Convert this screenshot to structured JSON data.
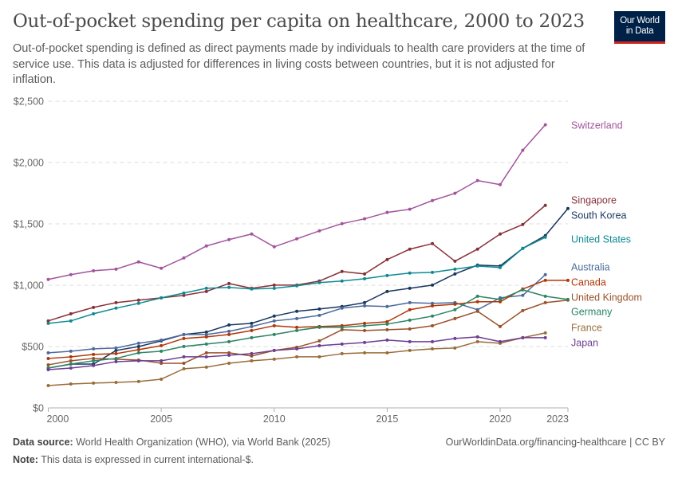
{
  "header": {
    "title": "Out-of-pocket spending per capita on healthcare, 2000 to 2023",
    "subtitle": "Out-of-pocket spending is defined as direct payments made by individuals to health care providers at the time of service use. This data is adjusted for differences in living costs between countries, but it is not adjusted for inflation.",
    "logo_line1": "Our World",
    "logo_line2": "in Data"
  },
  "footer": {
    "source_label": "Data source:",
    "source_text": " World Health Organization (WHO), via World Bank (2025)",
    "note_label": "Note:",
    "note_text": " This data is expressed in current international-$.",
    "url": "OurWorldinData.org/financing-healthcare | CC BY"
  },
  "chart_data": {
    "type": "line",
    "title": "Out-of-pocket spending per capita on healthcare, 2000 to 2023",
    "xlabel": "",
    "ylabel": "",
    "xlim": [
      2000,
      2023
    ],
    "ylim": [
      0,
      2500
    ],
    "y_ticks": [
      0,
      500,
      1000,
      1500,
      2000,
      2500
    ],
    "y_tick_labels": [
      "$0",
      "$500",
      "$1,000",
      "$1,500",
      "$2,000",
      "$2,500"
    ],
    "x_ticks": [
      2000,
      2005,
      2010,
      2015,
      2020,
      2023
    ],
    "x_tick_labels": [
      "2000",
      "2005",
      "2010",
      "2015",
      "2020",
      "2023"
    ],
    "grid": "horizontal-dashed",
    "legend": "right (inline end labels)",
    "series": [
      {
        "name": "Switzerland",
        "color": "#a2559c",
        "start": 2000,
        "values": [
          1047,
          1086,
          1118,
          1131,
          1190,
          1138,
          1222,
          1320,
          1372,
          1417,
          1313,
          1378,
          1443,
          1502,
          1541,
          1593,
          1619,
          1690,
          1749,
          1853,
          1820,
          2100,
          2308
        ]
      },
      {
        "name": "Singapore",
        "color": "#883039",
        "start": 2000,
        "values": [
          709,
          767,
          819,
          858,
          878,
          897,
          917,
          949,
          1014,
          975,
          1001,
          1001,
          1034,
          1112,
          1092,
          1209,
          1294,
          1339,
          1196,
          1294,
          1417,
          1495,
          1651
        ]
      },
      {
        "name": "South Korea",
        "color": "#18375f",
        "start": 2000,
        "values": [
          325,
          357,
          357,
          468,
          500,
          546,
          598,
          618,
          676,
          689,
          748,
          787,
          806,
          826,
          858,
          949,
          975,
          1001,
          1092,
          1164,
          1157,
          1300,
          1404,
          1625
        ]
      },
      {
        "name": "United States",
        "color": "#0f8a93",
        "start": 2000,
        "values": [
          689,
          709,
          767,
          813,
          852,
          897,
          936,
          975,
          982,
          969,
          975,
          995,
          1021,
          1034,
          1053,
          1079,
          1099,
          1105,
          1131,
          1157,
          1144,
          1300,
          1391
        ]
      },
      {
        "name": "Australia",
        "color": "#4c6a9c",
        "start": 2000,
        "values": [
          449,
          462,
          481,
          488,
          527,
          553,
          598,
          598,
          624,
          663,
          709,
          728,
          754,
          813,
          832,
          826,
          858,
          852,
          858,
          800,
          897,
          917,
          1086
        ]
      },
      {
        "name": "Canada",
        "color": "#b13507",
        "start": 2000,
        "values": [
          403,
          416,
          436,
          442,
          475,
          507,
          566,
          579,
          598,
          631,
          670,
          657,
          663,
          670,
          689,
          702,
          800,
          832,
          845,
          865,
          865,
          969,
          1040,
          1040
        ]
      },
      {
        "name": "United Kingdom",
        "color": "#9a5129",
        "start": 2000,
        "values": [
          351,
          384,
          403,
          397,
          390,
          364,
          364,
          449,
          449,
          423,
          468,
          494,
          546,
          637,
          631,
          637,
          644,
          670,
          728,
          787,
          663,
          793,
          858,
          878
        ]
      },
      {
        "name": "Germany",
        "color": "#2c8465",
        "start": 2000,
        "values": [
          325,
          357,
          384,
          403,
          449,
          462,
          501,
          520,
          540,
          572,
          598,
          631,
          657,
          657,
          670,
          683,
          715,
          748,
          800,
          910,
          884,
          962,
          910,
          884
        ]
      },
      {
        "name": "France",
        "color": "#996d39",
        "start": 2000,
        "values": [
          182,
          195,
          202,
          208,
          215,
          234,
          319,
          332,
          364,
          384,
          397,
          416,
          416,
          442,
          449,
          449,
          468,
          481,
          488,
          540,
          527,
          572,
          611
        ]
      },
      {
        "name": "Japan",
        "color": "#6d3e91",
        "start": 2000,
        "values": [
          312,
          325,
          345,
          377,
          384,
          384,
          416,
          416,
          429,
          442,
          468,
          481,
          507,
          520,
          533,
          553,
          540,
          540,
          566,
          579,
          540,
          572,
          572
        ]
      }
    ],
    "end_labels": [
      {
        "name": "Switzerland",
        "color": "#a2559c"
      },
      {
        "name": "Singapore",
        "color": "#883039"
      },
      {
        "name": "South Korea",
        "color": "#18375f"
      },
      {
        "name": "United States",
        "color": "#0f8a93"
      },
      {
        "name": "Australia",
        "color": "#4c6a9c"
      },
      {
        "name": "Canada",
        "color": "#b13507"
      },
      {
        "name": "United Kingdom",
        "color": "#9a5129"
      },
      {
        "name": "Germany",
        "color": "#2c8465"
      },
      {
        "name": "France",
        "color": "#996d39"
      },
      {
        "name": "Japan",
        "color": "#6d3e91"
      }
    ]
  }
}
